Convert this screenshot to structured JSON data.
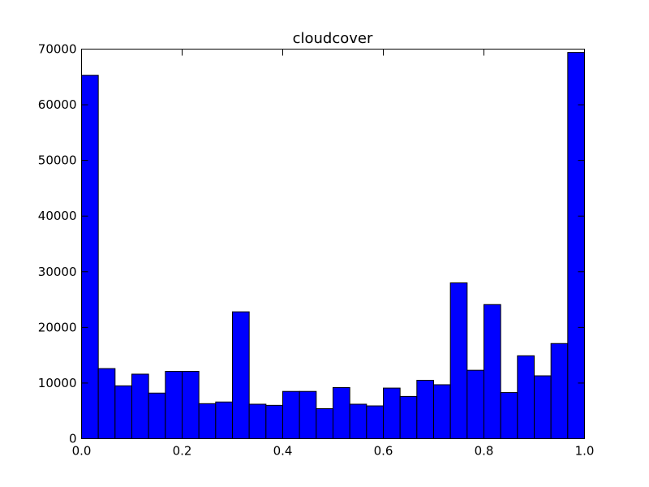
{
  "chart_data": {
    "type": "bar",
    "title": "cloudcover",
    "xlabel": "",
    "ylabel": "",
    "xlim": [
      0.0,
      1.0
    ],
    "ylim": [
      0,
      70000
    ],
    "bin_width": 0.0333,
    "bins_start": [
      0.0,
      0.0333,
      0.0667,
      0.1,
      0.1333,
      0.1667,
      0.2,
      0.2333,
      0.2667,
      0.3,
      0.3333,
      0.3667,
      0.4,
      0.4333,
      0.4667,
      0.5,
      0.5333,
      0.5667,
      0.6,
      0.6333,
      0.6667,
      0.7,
      0.7333,
      0.7667,
      0.8,
      0.8333,
      0.8667,
      0.9,
      0.9333,
      0.9667
    ],
    "values": [
      65300,
      12600,
      9500,
      11600,
      8200,
      12100,
      12100,
      6300,
      6600,
      22800,
      6200,
      6000,
      8500,
      8500,
      5400,
      9200,
      6200,
      5900,
      9100,
      7600,
      10500,
      9700,
      28000,
      12300,
      24100,
      8300,
      14900,
      11300,
      17100,
      69400
    ],
    "xticks": [
      "0.0",
      "0.2",
      "0.4",
      "0.6",
      "0.8",
      "1.0"
    ],
    "yticks": [
      "0",
      "10000",
      "20000",
      "30000",
      "40000",
      "50000",
      "60000",
      "70000"
    ],
    "bar_color": "#0000ff",
    "edge_color": "#000000",
    "grid": false
  }
}
